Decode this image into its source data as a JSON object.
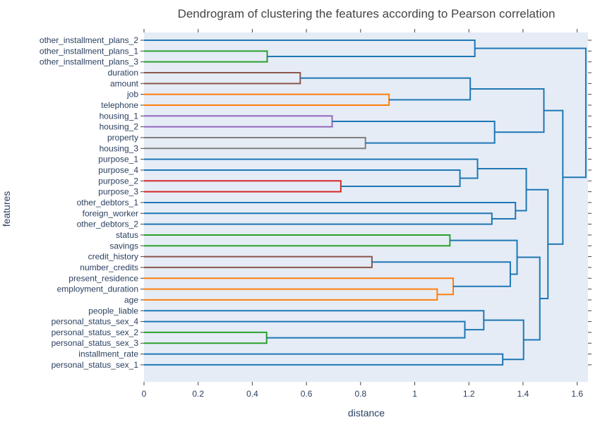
{
  "chart_data": {
    "type": "dendrogram",
    "title": "Dendrogram of clustering the features according to Pearson correlation",
    "xlabel": "distance",
    "ylabel": "features",
    "xlim": [
      0,
      1.64
    ],
    "xticks": [
      "0",
      "0.2",
      "0.4",
      "0.6",
      "0.8",
      "1",
      "1.2",
      "1.4",
      "1.6"
    ],
    "xtick_values": [
      0,
      0.2,
      0.4,
      0.6,
      0.8,
      1.0,
      1.2,
      1.4,
      1.6
    ],
    "plot_background": "#e5ecf6",
    "leaves": [
      "other_installment_plans_2",
      "other_installment_plans_1",
      "other_installment_plans_3",
      "duration",
      "amount",
      "job",
      "telephone",
      "housing_1",
      "housing_2",
      "property",
      "housing_3",
      "purpose_1",
      "purpose_4",
      "purpose_2",
      "purpose_3",
      "other_debtors_1",
      "foreign_worker",
      "other_debtors_2",
      "status",
      "savings",
      "credit_history",
      "number_credits",
      "present_residence",
      "employment_duration",
      "age",
      "people_liable",
      "personal_status_sex_4",
      "personal_status_sex_2",
      "personal_status_sex_3",
      "installment_rate",
      "personal_status_sex_1"
    ],
    "merges": [
      {
        "id": "a",
        "left": 1,
        "right": 2,
        "distance": 0.455,
        "color": "#2ca02c"
      },
      {
        "id": "b",
        "left": 0,
        "right": "a",
        "distance": 1.222,
        "color": "#1f77b4"
      },
      {
        "id": "c",
        "left": 3,
        "right": 4,
        "distance": 0.577,
        "color": "#8c564b"
      },
      {
        "id": "d",
        "left": 5,
        "right": 6,
        "distance": 0.905,
        "color": "#ff7f0e"
      },
      {
        "id": "e",
        "left": "c",
        "right": "d",
        "distance": 1.205,
        "color": "#1f77b4"
      },
      {
        "id": "f",
        "left": 7,
        "right": 8,
        "distance": 0.695,
        "color": "#9467bd"
      },
      {
        "id": "g",
        "left": 9,
        "right": 10,
        "distance": 0.818,
        "color": "#7f7f7f"
      },
      {
        "id": "h",
        "left": "f",
        "right": "g",
        "distance": 1.295,
        "color": "#1f77b4"
      },
      {
        "id": "i",
        "left": "e",
        "right": "h",
        "distance": 1.477,
        "color": "#1f77b4"
      },
      {
        "id": "j",
        "left": 13,
        "right": 14,
        "distance": 0.727,
        "color": "#d62728"
      },
      {
        "id": "k",
        "left": 12,
        "right": "j",
        "distance": 1.167,
        "color": "#1f77b4"
      },
      {
        "id": "l",
        "left": 11,
        "right": "k",
        "distance": 1.232,
        "color": "#1f77b4"
      },
      {
        "id": "m",
        "left": 16,
        "right": 17,
        "distance": 1.285,
        "color": "#1f77b4"
      },
      {
        "id": "n",
        "left": 15,
        "right": "m",
        "distance": 1.372,
        "color": "#1f77b4"
      },
      {
        "id": "o",
        "left": "l",
        "right": "n",
        "distance": 1.412,
        "color": "#1f77b4"
      },
      {
        "id": "p",
        "left": 18,
        "right": 19,
        "distance": 1.13,
        "color": "#2ca02c"
      },
      {
        "id": "q",
        "left": 20,
        "right": 21,
        "distance": 0.842,
        "color": "#8c564b"
      },
      {
        "id": "r",
        "left": 23,
        "right": 24,
        "distance": 1.083,
        "color": "#ff7f0e"
      },
      {
        "id": "s",
        "left": 22,
        "right": "r",
        "distance": 1.142,
        "color": "#ff7f0e"
      },
      {
        "id": "t",
        "left": "q",
        "right": "s",
        "distance": 1.353,
        "color": "#1f77b4"
      },
      {
        "id": "u",
        "left": "p",
        "right": "t",
        "distance": 1.378,
        "color": "#1f77b4"
      },
      {
        "id": "v",
        "left": 27,
        "right": 28,
        "distance": 0.453,
        "color": "#2ca02c"
      },
      {
        "id": "w",
        "left": 26,
        "right": "v",
        "distance": 1.185,
        "color": "#1f77b4"
      },
      {
        "id": "x",
        "left": 25,
        "right": "w",
        "distance": 1.255,
        "color": "#1f77b4"
      },
      {
        "id": "y",
        "left": 29,
        "right": 30,
        "distance": 1.325,
        "color": "#1f77b4"
      },
      {
        "id": "z",
        "left": "x",
        "right": "y",
        "distance": 1.402,
        "color": "#1f77b4"
      },
      {
        "id": "aa",
        "left": "u",
        "right": "z",
        "distance": 1.462,
        "color": "#1f77b4"
      },
      {
        "id": "ab",
        "left": "o",
        "right": "aa",
        "distance": 1.492,
        "color": "#1f77b4"
      },
      {
        "id": "ac",
        "left": "i",
        "right": "ab",
        "distance": 1.547,
        "color": "#1f77b4"
      },
      {
        "id": "ad",
        "left": "b",
        "right": "ac",
        "distance": 1.632,
        "color": "#1f77b4"
      }
    ]
  }
}
